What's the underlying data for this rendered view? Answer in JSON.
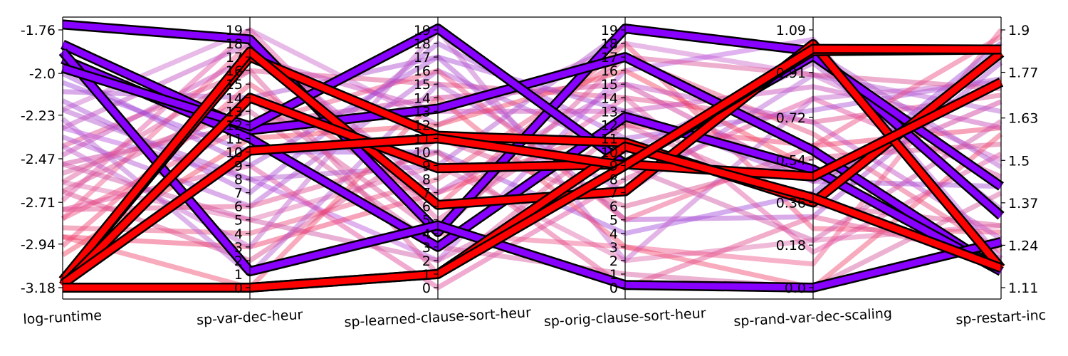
{
  "chart_data": {
    "type": "parallel-coordinates",
    "axes": [
      {
        "name": "log-runtime",
        "range": [
          -3.18,
          -1.76
        ],
        "ticks": [
          "-1.76",
          "-2.0",
          "-2.23",
          "-2.47",
          "-2.71",
          "-2.94",
          "-3.18"
        ],
        "tick_values": [
          -1.76,
          -2.0,
          -2.23,
          -2.47,
          -2.71,
          -2.94,
          -3.18
        ]
      },
      {
        "name": "sp-var-dec-heur",
        "range": [
          0,
          19
        ],
        "ticks": [
          "0",
          "1",
          "2",
          "3",
          "4",
          "5",
          "6",
          "7",
          "8",
          "9",
          "10",
          "11",
          "12",
          "13",
          "14",
          "15",
          "16",
          "17",
          "18",
          "19"
        ],
        "tick_values": [
          0,
          1,
          2,
          3,
          4,
          5,
          6,
          7,
          8,
          9,
          10,
          11,
          12,
          13,
          14,
          15,
          16,
          17,
          18,
          19
        ]
      },
      {
        "name": "sp-learned-clause-sort-heur",
        "range": [
          0,
          19
        ],
        "ticks": [
          "0",
          "1",
          "2",
          "3",
          "4",
          "5",
          "6",
          "7",
          "8",
          "9",
          "10",
          "11",
          "12",
          "13",
          "14",
          "15",
          "16",
          "17",
          "18",
          "19"
        ],
        "tick_values": [
          0,
          1,
          2,
          3,
          4,
          5,
          6,
          7,
          8,
          9,
          10,
          11,
          12,
          13,
          14,
          15,
          16,
          17,
          18,
          19
        ]
      },
      {
        "name": "sp-orig-clause-sort-heur",
        "range": [
          0,
          19
        ],
        "ticks": [
          "0",
          "1",
          "2",
          "3",
          "4",
          "5",
          "6",
          "7",
          "8",
          "9",
          "10",
          "11",
          "12",
          "13",
          "14",
          "15",
          "16",
          "17",
          "18",
          "19"
        ],
        "tick_values": [
          0,
          1,
          2,
          3,
          4,
          5,
          6,
          7,
          8,
          9,
          10,
          11,
          12,
          13,
          14,
          15,
          16,
          17,
          18,
          19
        ]
      },
      {
        "name": "sp-rand-var-dec-scaling",
        "range": [
          0.0,
          1.09
        ],
        "ticks": [
          "0.0",
          "0.18",
          "0.36",
          "0.54",
          "0.72",
          "0.91",
          "1.09"
        ],
        "tick_values": [
          0.0,
          0.18,
          0.36,
          0.54,
          0.72,
          0.91,
          1.09
        ]
      },
      {
        "name": "sp-restart-inc",
        "range": [
          1.11,
          1.9
        ],
        "ticks": [
          "1.11",
          "1.24",
          "1.37",
          "1.5",
          "1.63",
          "1.77",
          "1.9"
        ],
        "tick_values": [
          1.11,
          1.24,
          1.37,
          1.5,
          1.63,
          1.77,
          1.9
        ]
      }
    ],
    "colors": {
      "fast": "#ff0000",
      "slow": "#8b00ff",
      "outline": "#000000"
    },
    "highlighted_lines": [
      {
        "values": [
          -1.73,
          18.3,
          4.1,
          19.1,
          1.0,
          1.33
        ],
        "color": "#8800ff"
      },
      {
        "values": [
          -1.84,
          11.6,
          13.2,
          17.0,
          0.58,
          1.16
        ],
        "color": "#8800ff"
      },
      {
        "values": [
          -1.92,
          11.0,
          3.0,
          12.6,
          0.5,
          1.16
        ],
        "color": "#8800ff"
      },
      {
        "values": [
          -1.88,
          1.2,
          4.6,
          0.2,
          0.0,
          1.25
        ],
        "color": "#8800ff"
      },
      {
        "values": [
          -1.97,
          11.9,
          19.1,
          9.1,
          0.98,
          1.42
        ],
        "color": "#8800ff"
      },
      {
        "values": [
          -3.14,
          17.0,
          11.2,
          10.7,
          0.36,
          1.83
        ],
        "color": "#ff0000"
      },
      {
        "values": [
          -3.14,
          17.4,
          6.1,
          7.1,
          1.03,
          1.17
        ],
        "color": "#ff0000"
      },
      {
        "values": [
          -3.17,
          14.0,
          8.8,
          9.1,
          0.47,
          1.74
        ],
        "color": "#ff0000"
      },
      {
        "values": [
          -3.18,
          0.0,
          1.0,
          10.4,
          0.38,
          1.17
        ],
        "color": "#ff0000"
      },
      {
        "values": [
          -3.16,
          10.1,
          11.0,
          9.0,
          1.0,
          1.84
        ],
        "color": "#ff0000"
      },
      {
        "values": [
          -3.18,
          0.0,
          1.0,
          9.0,
          1.01,
          1.84
        ],
        "color": "#ff0000"
      }
    ],
    "background_lines": [
      {
        "values": [
          -2.2,
          19.0,
          12.0,
          18.0,
          0.9,
          1.5
        ],
        "color": "#cc66cc"
      },
      {
        "values": [
          -2.4,
          16.0,
          15.0,
          14.0,
          0.7,
          1.7
        ],
        "color": "#dd4488"
      },
      {
        "values": [
          -2.6,
          5.0,
          9.0,
          2.0,
          0.2,
          1.3
        ],
        "color": "#dd66aa"
      },
      {
        "values": [
          -2.3,
          8.0,
          2.0,
          16.0,
          1.05,
          1.2
        ],
        "color": "#bb55dd"
      },
      {
        "values": [
          -2.9,
          3.0,
          7.0,
          12.0,
          0.6,
          1.6
        ],
        "color": "#ee3366"
      },
      {
        "values": [
          -2.1,
          14.0,
          17.0,
          5.0,
          0.3,
          1.8
        ],
        "color": "#aa44cc"
      },
      {
        "values": [
          -2.75,
          9.0,
          0.0,
          8.0,
          0.8,
          1.45
        ],
        "color": "#e0449a"
      },
      {
        "values": [
          -2.5,
          12.0,
          14.0,
          15.0,
          0.45,
          1.68
        ],
        "color": "#cc3399"
      },
      {
        "values": [
          -2.8,
          18.0,
          4.0,
          3.0,
          0.1,
          1.9
        ],
        "color": "#ee5588"
      },
      {
        "values": [
          -2.35,
          6.0,
          16.0,
          10.0,
          0.95,
          1.35
        ],
        "color": "#b050d0"
      },
      {
        "values": [
          -2.65,
          2.0,
          11.0,
          6.0,
          0.55,
          1.55
        ],
        "color": "#d94a8a"
      },
      {
        "values": [
          -2.95,
          15.0,
          6.0,
          18.0,
          0.25,
          1.28
        ],
        "color": "#f04070"
      },
      {
        "values": [
          -2.15,
          7.0,
          18.0,
          11.0,
          0.75,
          1.75
        ],
        "color": "#a84bd4"
      },
      {
        "values": [
          -2.55,
          13.0,
          3.0,
          1.0,
          0.0,
          1.4
        ],
        "color": "#d55599"
      },
      {
        "values": [
          -2.45,
          17.0,
          13.0,
          13.0,
          0.85,
          1.6
        ],
        "color": "#c845b5"
      },
      {
        "values": [
          -2.85,
          4.0,
          8.0,
          17.0,
          0.65,
          1.22
        ],
        "color": "#e84a7a"
      },
      {
        "values": [
          -2.05,
          10.0,
          10.0,
          4.0,
          0.4,
          1.86
        ],
        "color": "#9f4ad9"
      },
      {
        "values": [
          -2.7,
          19.0,
          5.0,
          14.0,
          0.15,
          1.52
        ],
        "color": "#e050a0"
      },
      {
        "values": [
          -2.25,
          1.0,
          15.0,
          7.0,
          0.9,
          1.65
        ],
        "color": "#b55ad0"
      },
      {
        "values": [
          -3.0,
          11.0,
          12.0,
          16.0,
          0.5,
          1.18
        ],
        "color": "#f2405a"
      },
      {
        "values": [
          -2.4,
          3.0,
          19.0,
          2.0,
          0.8,
          1.74
        ],
        "color": "#c25cc9"
      },
      {
        "values": [
          -2.6,
          16.0,
          1.0,
          12.0,
          0.35,
          1.3
        ],
        "color": "#dc4d93"
      },
      {
        "values": [
          -2.2,
          8.0,
          9.0,
          19.0,
          1.0,
          1.48
        ],
        "color": "#b050cc"
      },
      {
        "values": [
          -2.8,
          12.0,
          16.0,
          5.0,
          0.6,
          1.88
        ],
        "color": "#ea477d"
      },
      {
        "values": [
          -2.5,
          5.0,
          2.0,
          9.0,
          0.2,
          1.62
        ],
        "color": "#cf4fa4"
      },
      {
        "values": [
          -2.3,
          18.0,
          7.0,
          15.0,
          0.7,
          1.26
        ],
        "color": "#c04cc0"
      },
      {
        "values": [
          -2.9,
          0.0,
          14.0,
          3.0,
          0.0,
          1.58
        ],
        "color": "#f0456a"
      },
      {
        "values": [
          -2.0,
          9.0,
          17.0,
          13.0,
          0.45,
          1.42
        ],
        "color": "#a648d2"
      },
      {
        "values": [
          -2.65,
          14.0,
          4.0,
          17.0,
          0.9,
          1.72
        ],
        "color": "#da4d92"
      },
      {
        "values": [
          -2.75,
          6.0,
          10.0,
          0.0,
          0.3,
          1.2
        ],
        "color": "#e04a8a"
      }
    ]
  }
}
